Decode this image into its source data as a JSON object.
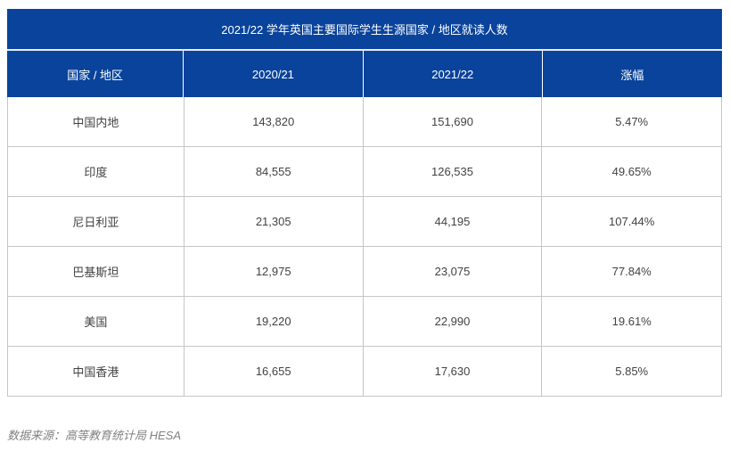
{
  "colors": {
    "header_blue": "#09439b",
    "header_text": "#ffffff",
    "border_gray": "#c6c6c6",
    "body_text": "#424242",
    "note_text": "#808080",
    "page_background": "#ffffff"
  },
  "table": {
    "title": "2021/22 学年英国主要国际学生生源国家 / 地区就读人数",
    "columns": [
      "国家 / 地区",
      "2020/21",
      "2021/22",
      "涨幅"
    ],
    "rows": [
      [
        "中国内地",
        "143,820",
        "151,690",
        "5.47%"
      ],
      [
        "印度",
        "84,555",
        "126,535",
        "49.65%"
      ],
      [
        "尼日利亚",
        "21,305",
        "44,195",
        "107.44%"
      ],
      [
        "巴基斯坦",
        "12,975",
        "23,075",
        "77.84%"
      ],
      [
        "美国",
        "19,220",
        "22,990",
        "19.61%"
      ],
      [
        "中国香港",
        "16,655",
        "17,630",
        "5.85%"
      ]
    ],
    "source_note": "数据来源：高等教育统计局 HESA"
  },
  "chart_data": {
    "type": "table",
    "title": "2021/22 学年英国主要国际学生生源国家 / 地区就读人数",
    "columns": [
      "国家 / 地区",
      "2020/21",
      "2021/22",
      "涨幅"
    ],
    "records": [
      {
        "country": "中国内地",
        "y2020_21": 143820,
        "y2021_22": 151690,
        "change_pct": 5.47
      },
      {
        "country": "印度",
        "y2020_21": 84555,
        "y2021_22": 126535,
        "change_pct": 49.65
      },
      {
        "country": "尼日利亚",
        "y2020_21": 21305,
        "y2021_22": 44195,
        "change_pct": 107.44
      },
      {
        "country": "巴基斯坦",
        "y2020_21": 12975,
        "y2021_22": 23075,
        "change_pct": 77.84
      },
      {
        "country": "美国",
        "y2020_21": 19220,
        "y2021_22": 22990,
        "change_pct": 19.61
      },
      {
        "country": "中国香港",
        "y2020_21": 16655,
        "y2021_22": 17630,
        "change_pct": 5.85
      }
    ],
    "source_note": "数据来源：高等教育统计局 HESA"
  }
}
